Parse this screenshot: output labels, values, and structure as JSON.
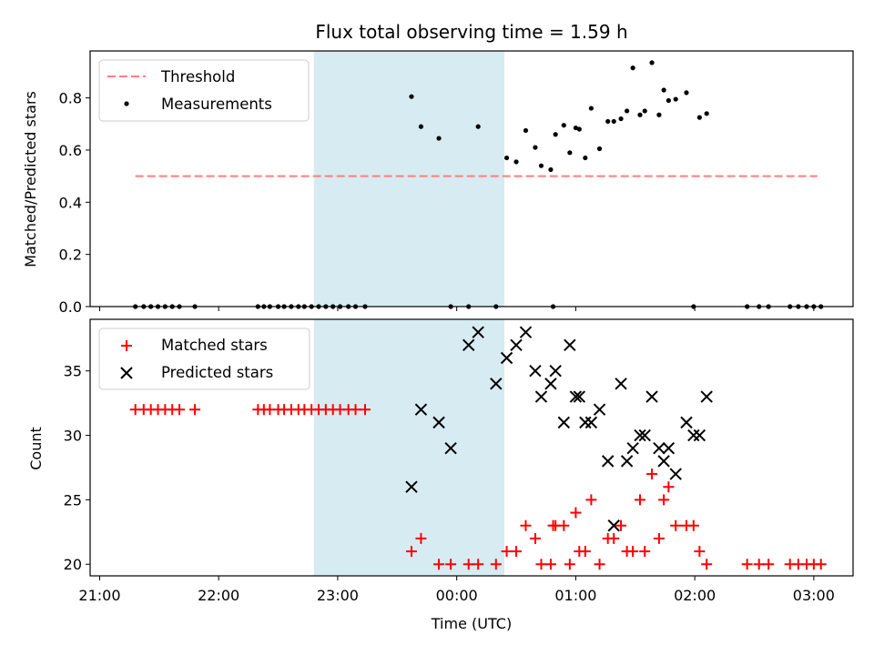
{
  "chart_data": [
    {
      "type": "scatter",
      "title": "Flux total observing time = 1.59 h",
      "ylabel": "Matched/Predicted stars",
      "xlabel": "",
      "ylim": [
        0,
        0.98
      ],
      "yticks": [
        "0.0",
        "0.2",
        "0.4",
        "0.6",
        "0.8"
      ],
      "ytick_values": [
        0,
        0.2,
        0.4,
        0.6,
        0.8
      ],
      "legend_position": "top-left",
      "highlight_span": {
        "x0": 1.8,
        "x1": 3.4,
        "color": "#add8e6"
      },
      "series": [
        {
          "name": "Threshold",
          "style": "dashed-line",
          "color": "#ff7f7f",
          "x": [
            0.3,
            6.03
          ],
          "y": [
            0.5,
            0.5
          ]
        },
        {
          "name": "Measurements",
          "style": "dot",
          "color": "#000000",
          "x": [
            0.3,
            0.37,
            0.43,
            0.49,
            0.55,
            0.61,
            0.67,
            0.8,
            1.33,
            1.38,
            1.43,
            1.5,
            1.55,
            1.61,
            1.67,
            1.72,
            1.78,
            1.84,
            1.9,
            1.96,
            2.02,
            2.09,
            2.15,
            2.23,
            2.62,
            2.7,
            2.85,
            2.95,
            3.1,
            3.18,
            3.33,
            3.42,
            3.5,
            3.58,
            3.66,
            3.71,
            3.79,
            3.81,
            3.83,
            3.9,
            3.95,
            4.0,
            4.03,
            4.08,
            4.13,
            4.2,
            4.27,
            4.32,
            4.38,
            4.43,
            4.48,
            4.54,
            4.58,
            4.64,
            4.7,
            4.74,
            4.78,
            4.84,
            4.93,
            4.99,
            5.04,
            5.1,
            5.44,
            5.54,
            5.62,
            5.8,
            5.87,
            5.94,
            6.0,
            6.06
          ],
          "y": [
            0,
            0,
            0,
            0,
            0,
            0,
            0,
            0,
            0,
            0,
            0,
            0,
            0,
            0,
            0,
            0,
            0,
            0,
            0,
            0,
            0,
            0,
            0,
            0,
            0.805,
            0.69,
            0.645,
            0,
            0,
            0.69,
            0,
            0.57,
            0.555,
            0.675,
            0.61,
            0.54,
            0.525,
            0,
            0.66,
            0.695,
            0.59,
            0.685,
            0.68,
            0.57,
            0.76,
            0.605,
            0.71,
            0.71,
            0.72,
            0.75,
            0.915,
            0.735,
            0.75,
            0.935,
            0.735,
            0.83,
            0.79,
            0.795,
            0.82,
            0,
            0.725,
            0.74,
            0,
            0,
            0,
            0,
            0,
            0,
            0,
            0
          ]
        }
      ]
    },
    {
      "type": "scatter",
      "title": "",
      "ylabel": "Count",
      "xlabel": "Time (UTC)",
      "ylim": [
        19.1,
        39
      ],
      "yticks": [
        "20",
        "25",
        "30",
        "35"
      ],
      "ytick_values": [
        20,
        25,
        30,
        35
      ],
      "xticks": [
        "21:00",
        "22:00",
        "23:00",
        "00:00",
        "01:00",
        "02:00",
        "03:00"
      ],
      "xtick_values": [
        0,
        1,
        2,
        3,
        4,
        5,
        6
      ],
      "xlim": [
        -0.08,
        6.33
      ],
      "legend_position": "top-left",
      "highlight_span": {
        "x0": 1.8,
        "x1": 3.4,
        "color": "#add8e6"
      },
      "series": [
        {
          "name": "Matched stars",
          "style": "plus",
          "color": "#ff0000",
          "x": [
            0.3,
            0.37,
            0.43,
            0.49,
            0.55,
            0.61,
            0.67,
            0.8,
            1.33,
            1.38,
            1.43,
            1.5,
            1.55,
            1.61,
            1.67,
            1.72,
            1.78,
            1.84,
            1.9,
            1.96,
            2.02,
            2.09,
            2.15,
            2.23,
            2.62,
            2.7,
            2.85,
            2.95,
            3.1,
            3.18,
            3.33,
            3.42,
            3.5,
            3.58,
            3.66,
            3.71,
            3.79,
            3.81,
            3.83,
            3.9,
            3.95,
            4.0,
            4.03,
            4.08,
            4.13,
            4.2,
            4.27,
            4.32,
            4.38,
            4.43,
            4.48,
            4.54,
            4.58,
            4.64,
            4.7,
            4.74,
            4.78,
            4.84,
            4.93,
            4.99,
            5.04,
            5.1,
            5.44,
            5.54,
            5.62,
            5.8,
            5.87,
            5.94,
            6.0,
            6.06
          ],
          "y": [
            32,
            32,
            32,
            32,
            32,
            32,
            32,
            32,
            32,
            32,
            32,
            32,
            32,
            32,
            32,
            32,
            32,
            32,
            32,
            32,
            32,
            32,
            32,
            32,
            21,
            22,
            20,
            20,
            20,
            20,
            20,
            21,
            21,
            23,
            22,
            20,
            20,
            23,
            23,
            23,
            20,
            24,
            21,
            21,
            25,
            20,
            22,
            22,
            23,
            21,
            21,
            25,
            21,
            27,
            22,
            25,
            26,
            23,
            23,
            23,
            21,
            20,
            20,
            20,
            20,
            20,
            20,
            20,
            20,
            20
          ]
        },
        {
          "name": "Predicted stars",
          "style": "x",
          "color": "#000000",
          "x": [
            2.62,
            2.7,
            2.85,
            2.95,
            3.1,
            3.18,
            3.33,
            3.42,
            3.5,
            3.58,
            3.66,
            3.71,
            3.79,
            3.83,
            3.9,
            3.95,
            4.0,
            4.03,
            4.08,
            4.13,
            4.2,
            4.27,
            4.32,
            4.38,
            4.43,
            4.48,
            4.54,
            4.58,
            4.64,
            4.7,
            4.74,
            4.78,
            4.84,
            4.93,
            4.99,
            5.04,
            5.1
          ],
          "y": [
            26,
            32,
            31,
            29,
            37,
            38,
            34,
            36,
            37,
            38,
            35,
            33,
            34,
            35,
            31,
            37,
            33,
            33,
            31,
            31,
            32,
            28,
            23,
            34,
            28,
            29,
            30,
            30,
            33,
            29,
            28,
            29,
            27,
            31,
            30,
            30,
            33
          ]
        }
      ]
    }
  ]
}
